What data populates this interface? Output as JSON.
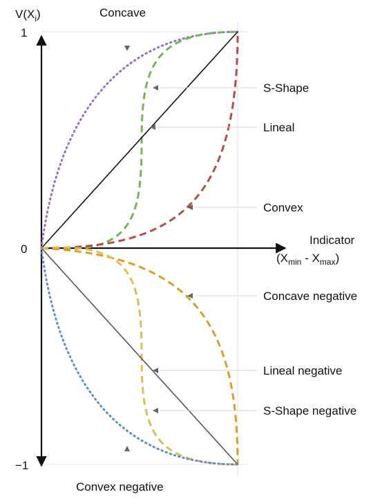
{
  "axes": {
    "y_label": "V(X",
    "y_label_sub": "i",
    "y_label_close": ")",
    "x_label_line1": "Indicator",
    "x_label_line2_open": "(X",
    "x_label_min_sub": "min",
    "x_label_mid": " - X",
    "x_label_max_sub": "max",
    "x_label_close": ")",
    "tick_top": "1",
    "tick_zero": "0",
    "tick_bottom": "−1"
  },
  "curves": [
    {
      "id": "concave",
      "label": "Concave",
      "color": "#9b6fba",
      "style": "dotted"
    },
    {
      "id": "s-shape",
      "label": "S-Shape",
      "color": "#78b35a",
      "style": "dashed"
    },
    {
      "id": "lineal",
      "label": "Lineal",
      "color": "#111111",
      "style": "solid"
    },
    {
      "id": "convex",
      "label": "Convex",
      "color": "#b94a45",
      "style": "dashed"
    },
    {
      "id": "concave-negative",
      "label": "Concave negative",
      "color": "#d9a020",
      "style": "dashed"
    },
    {
      "id": "lineal-negative",
      "label": "Lineal negative",
      "color": "#555555",
      "style": "solid"
    },
    {
      "id": "s-shape-negative",
      "label": "S-Shape negative",
      "color": "#e2bb55",
      "style": "dashed"
    },
    {
      "id": "convex-negative",
      "label": "Convex negative",
      "color": "#5b8fd0",
      "style": "dotted"
    }
  ]
}
